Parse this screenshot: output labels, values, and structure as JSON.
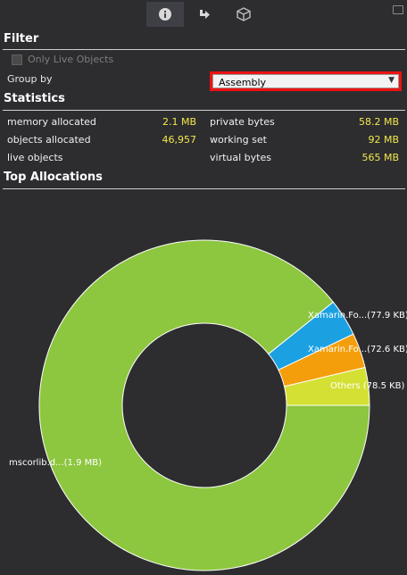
{
  "toolbar": {
    "icons": [
      "info-icon",
      "forward-arrow-icon",
      "box-icon"
    ],
    "active": "info-icon"
  },
  "filter": {
    "title": "Filter",
    "only_live_label": "Only Live Objects",
    "only_live_checked": false,
    "group_by_label": "Group by",
    "group_by_value": "Assembly"
  },
  "statistics": {
    "title": "Statistics",
    "memory_allocated": {
      "label": "memory allocated",
      "value": "2.1 MB"
    },
    "objects_allocated": {
      "label": "objects allocated",
      "value": "46,957"
    },
    "live_objects": {
      "label": "live objects",
      "value": ""
    },
    "private_bytes": {
      "label": "private bytes",
      "value": "58.2 MB"
    },
    "working_set": {
      "label": "working set",
      "value": "92 MB"
    },
    "virtual_bytes": {
      "label": "virtual bytes",
      "value": "565 MB"
    }
  },
  "top_allocations": {
    "title": "Top Allocations"
  },
  "chart_data": {
    "type": "pie",
    "subtype": "donut",
    "slices": [
      {
        "label": "mscorlib.d...(1.9 MB)",
        "value": 1900,
        "color": "#8dc63f"
      },
      {
        "label": "Xamarin.Fo...(77.9 KB)",
        "value": 77.9,
        "color": "#1ba1e2"
      },
      {
        "label": "Xamarin.Fo...(72.6 KB)",
        "value": 72.6,
        "color": "#f59e0b"
      },
      {
        "label": "Others (78.5 KB)",
        "value": 78.5,
        "color": "#d4e033"
      }
    ]
  },
  "colors": {
    "background": "#2d2d30",
    "value_yellow": "#f2e84a",
    "highlight_border": "#ee1111"
  }
}
